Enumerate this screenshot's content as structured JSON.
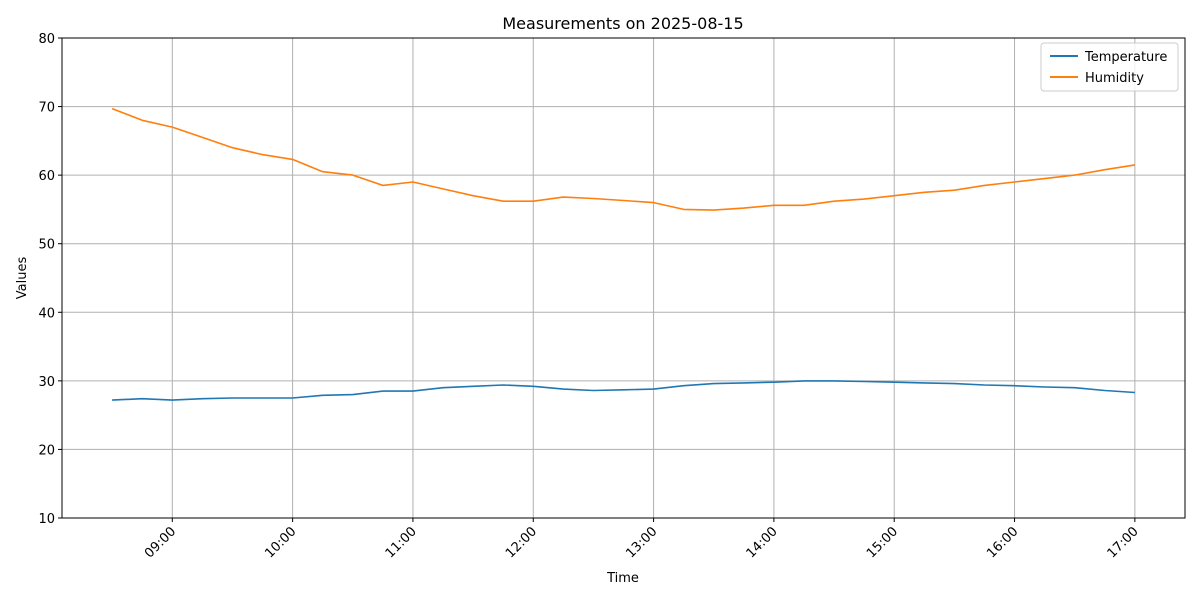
{
  "chart_data": {
    "type": "line",
    "title": "Measurements on 2025-08-15",
    "xlabel": "Time",
    "ylabel": "Values",
    "ylim": [
      10,
      80
    ],
    "yticks": [
      10,
      20,
      30,
      40,
      50,
      60,
      70,
      80
    ],
    "xlim": [
      "08:05",
      "17:25"
    ],
    "xticks": [
      "09:00",
      "10:00",
      "11:00",
      "12:00",
      "13:00",
      "14:00",
      "15:00",
      "16:00",
      "17:00"
    ],
    "grid": true,
    "legend_position": "top-right",
    "x": [
      "08:30",
      "08:45",
      "09:00",
      "09:15",
      "09:30",
      "09:45",
      "10:00",
      "10:15",
      "10:30",
      "10:45",
      "11:00",
      "11:15",
      "11:30",
      "11:45",
      "12:00",
      "12:15",
      "12:30",
      "12:45",
      "13:00",
      "13:15",
      "13:30",
      "13:45",
      "14:00",
      "14:15",
      "14:30",
      "14:45",
      "15:00",
      "15:15",
      "15:30",
      "15:45",
      "16:00",
      "16:15",
      "16:30",
      "16:45",
      "17:00"
    ],
    "series": [
      {
        "name": "Temperature",
        "color": "#1f77b4",
        "values": [
          27.2,
          27.4,
          27.2,
          27.4,
          27.5,
          27.5,
          27.5,
          27.9,
          28.0,
          28.5,
          28.5,
          29.0,
          29.2,
          29.4,
          29.2,
          28.8,
          28.6,
          28.7,
          28.8,
          29.3,
          29.6,
          29.7,
          29.8,
          30.0,
          30.0,
          29.9,
          29.8,
          29.7,
          29.6,
          29.4,
          29.3,
          29.1,
          29.0,
          28.6,
          28.3
        ]
      },
      {
        "name": "Humidity",
        "color": "#ff7f0e",
        "values": [
          69.7,
          68.0,
          67.0,
          65.5,
          64.0,
          63.0,
          62.3,
          60.5,
          60.0,
          58.5,
          59.0,
          58.0,
          57.0,
          56.2,
          56.2,
          56.8,
          56.6,
          56.3,
          56.0,
          55.0,
          54.9,
          55.2,
          55.6,
          55.6,
          56.2,
          56.5,
          57.0,
          57.5,
          57.8,
          58.5,
          59.0,
          59.5,
          60.0,
          60.8,
          61.5
        ]
      }
    ]
  }
}
